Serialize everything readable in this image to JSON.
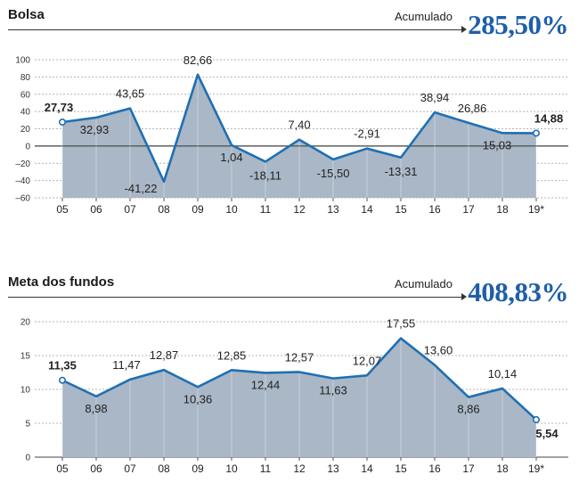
{
  "panels": [
    {
      "title": "Bolsa",
      "accumulated_label": "Acumulado",
      "accumulated_value": "285,50%"
    },
    {
      "title": "Meta dos fundos",
      "accumulated_label": "Acumulado",
      "accumulated_value": "408,83%"
    }
  ],
  "colors": {
    "line": "#1f6fb4",
    "area": "#a9b7c6",
    "accent": "#1f5fa8"
  },
  "chart_data": [
    {
      "type": "area",
      "title": "Bolsa",
      "categories": [
        "05",
        "06",
        "07",
        "08",
        "09",
        "10",
        "11",
        "12",
        "13",
        "14",
        "15",
        "16",
        "17",
        "18",
        "19*"
      ],
      "values": [
        27.73,
        32.93,
        43.65,
        -41.22,
        82.66,
        1.04,
        -18.11,
        7.4,
        -15.5,
        -2.91,
        -13.31,
        38.94,
        26.86,
        15.03,
        14.88
      ],
      "labels": [
        "27,73",
        "32,93",
        "43,65",
        "-41,22",
        "82,66",
        "1,04",
        "-18,11",
        "7,40",
        "-15,50",
        "-2,91",
        "-13,31",
        "38,94",
        "26,86",
        "15,03",
        "14,88"
      ],
      "yticks": [
        100,
        80,
        60,
        40,
        20,
        0,
        -20,
        -40,
        -60
      ],
      "ytick_labels": [
        "100",
        "80",
        "60",
        "40",
        "20",
        "0",
        "–20",
        "–40",
        "–60"
      ],
      "ylim": [
        -60,
        100
      ],
      "grid": true
    },
    {
      "type": "area",
      "title": "Meta dos fundos",
      "categories": [
        "05",
        "06",
        "07",
        "08",
        "09",
        "10",
        "11",
        "12",
        "13",
        "14",
        "15",
        "16",
        "17",
        "18",
        "19*"
      ],
      "values": [
        11.35,
        8.98,
        11.47,
        12.87,
        10.36,
        12.85,
        12.44,
        12.57,
        11.63,
        12.07,
        17.55,
        13.6,
        8.86,
        10.14,
        5.54
      ],
      "labels": [
        "11,35",
        "8,98",
        "11,47",
        "12,87",
        "10,36",
        "12,85",
        "12,44",
        "12,57",
        "11,63",
        "12,07",
        "17,55",
        "13,60",
        "8,86",
        "10,14",
        "5,54"
      ],
      "yticks": [
        20,
        15,
        10,
        5,
        0
      ],
      "ytick_labels": [
        "20",
        "15",
        "10",
        "5",
        "0"
      ],
      "ylim": [
        0,
        20
      ],
      "grid": true
    }
  ]
}
